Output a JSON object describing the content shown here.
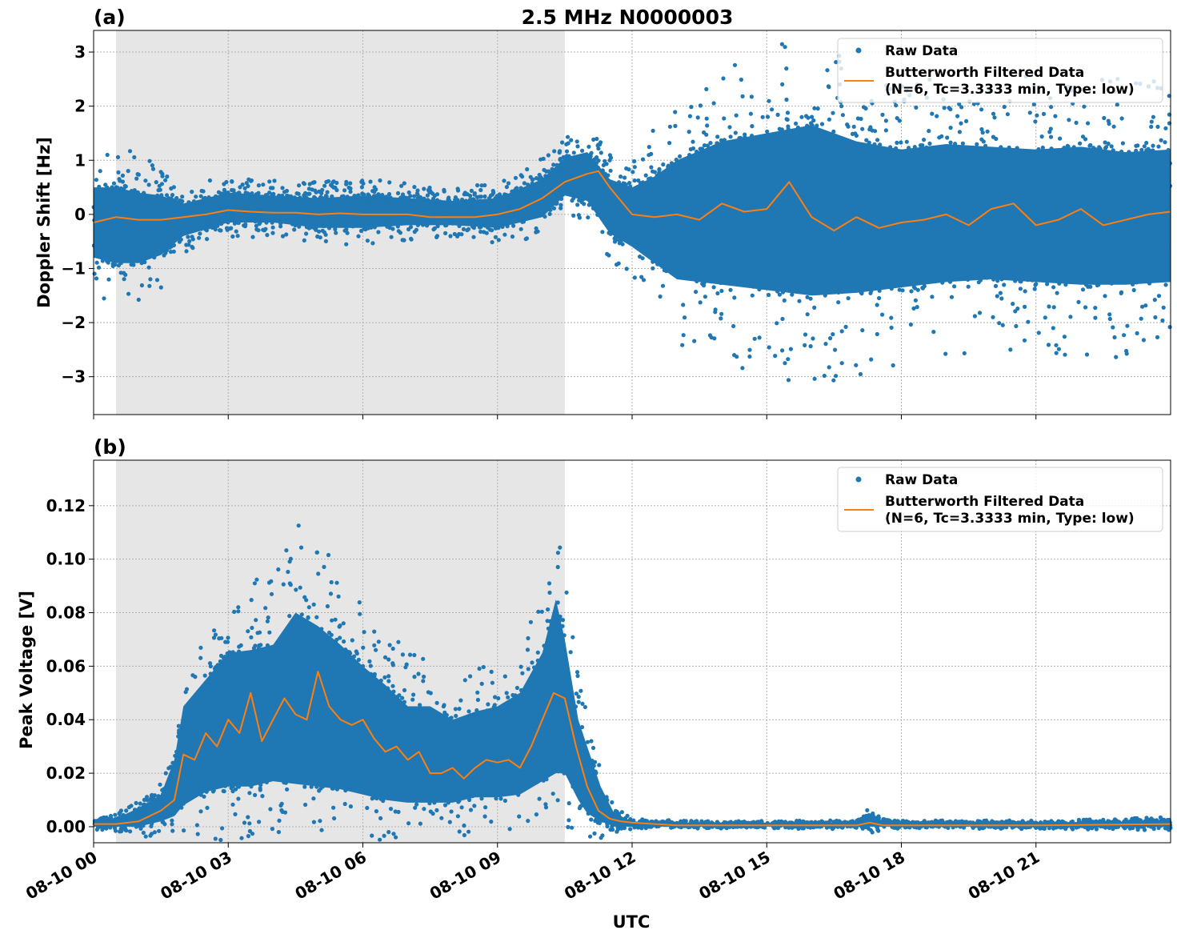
{
  "figure": {
    "title": "2.5 MHz N0000003",
    "xlabel": "UTC"
  },
  "chart_data": [
    {
      "type": "scatter",
      "panel_label": "(a)",
      "title": "2.5 MHz N0000003",
      "ylabel": "Doppler Shift [Hz]",
      "xlabel": "UTC",
      "x_unit": "hours since 08-10 00 UTC",
      "xlim": [
        0,
        24
      ],
      "ylim": [
        -3.7,
        3.4
      ],
      "x_ticks": [
        0,
        3,
        6,
        9,
        12,
        15,
        18,
        21
      ],
      "y_ticks": [
        -3,
        -2,
        -1,
        0,
        1,
        2,
        3
      ],
      "y_tick_labels": [
        "−3",
        "−2",
        "−1",
        "0",
        "1",
        "2",
        "3"
      ],
      "grid": true,
      "shaded_region": {
        "x": [
          0.5,
          10.5
        ],
        "color": "#e6e6e6"
      },
      "legend_position": "top-right",
      "legend": [
        {
          "label": "Raw Data",
          "marker": "dot",
          "color": "#1f77b4"
        },
        {
          "label": "Butterworth Filtered Data",
          "label2": "(N=6, Tc=3.3333 min, Type: low)",
          "marker": "line",
          "color": "#ff7f0e"
        }
      ],
      "raw_envelope": {
        "x": [
          0,
          0.5,
          1,
          1.5,
          2,
          3,
          4,
          5,
          6,
          7,
          8,
          9,
          10,
          10.5,
          11,
          11.5,
          12,
          12.5,
          13,
          14,
          15,
          16,
          17,
          18,
          19,
          20,
          21,
          22,
          23,
          24
        ],
        "upper": [
          0.5,
          0.5,
          0.4,
          0.35,
          0.2,
          0.4,
          0.35,
          0.3,
          0.35,
          0.3,
          0.25,
          0.3,
          0.65,
          1.05,
          1.15,
          0.65,
          0.5,
          0.7,
          1.0,
          1.35,
          1.5,
          1.65,
          1.35,
          1.2,
          1.3,
          1.25,
          1.2,
          1.25,
          1.15,
          1.2
        ],
        "lower": [
          -0.8,
          -0.9,
          -0.9,
          -0.75,
          -0.4,
          -0.15,
          -0.15,
          -0.25,
          -0.25,
          -0.2,
          -0.2,
          -0.25,
          -0.05,
          0.35,
          0.25,
          -0.35,
          -0.6,
          -0.9,
          -1.2,
          -1.3,
          -1.4,
          -1.5,
          -1.45,
          -1.35,
          -1.25,
          -1.2,
          -1.25,
          -1.3,
          -1.3,
          -1.25
        ]
      },
      "series": [
        {
          "name": "Butterworth Filtered Data",
          "x": [
            0,
            0.5,
            1,
            1.5,
            2,
            2.5,
            3,
            3.5,
            4,
            4.5,
            5,
            5.5,
            6,
            6.5,
            7,
            7.5,
            8,
            8.5,
            9,
            9.5,
            10,
            10.5,
            11,
            11.25,
            11.5,
            12,
            12.5,
            13,
            13.5,
            14,
            14.5,
            15,
            15.5,
            16,
            16.5,
            17,
            17.5,
            18,
            18.5,
            19,
            19.5,
            20,
            20.5,
            21,
            21.5,
            22,
            22.5,
            23,
            23.5,
            24
          ],
          "y": [
            -0.15,
            -0.05,
            -0.1,
            -0.1,
            -0.05,
            0.0,
            0.08,
            0.05,
            0.03,
            0.03,
            0.0,
            0.02,
            0.0,
            0.0,
            0.0,
            -0.05,
            -0.05,
            -0.05,
            0.0,
            0.1,
            0.3,
            0.6,
            0.75,
            0.8,
            0.5,
            0.0,
            -0.05,
            0.0,
            -0.1,
            0.2,
            0.05,
            0.1,
            0.6,
            -0.05,
            -0.3,
            -0.05,
            -0.25,
            -0.15,
            -0.1,
            0.0,
            -0.2,
            0.1,
            0.2,
            -0.2,
            -0.1,
            0.1,
            -0.2,
            -0.1,
            0.0,
            0.05
          ]
        }
      ]
    },
    {
      "type": "scatter",
      "panel_label": "(b)",
      "title": "",
      "ylabel": "Peak Voltage [V]",
      "xlabel": "UTC",
      "x_unit": "hours since 08-10 00 UTC",
      "xlim": [
        0,
        24
      ],
      "ylim": [
        -0.006,
        0.137
      ],
      "x_ticks": [
        0,
        3,
        6,
        9,
        12,
        15,
        18,
        21
      ],
      "x_tick_labels": [
        "08-10 00",
        "08-10 03",
        "08-10 06",
        "08-10 09",
        "08-10 12",
        "08-10 15",
        "08-10 18",
        "08-10 21"
      ],
      "y_ticks": [
        0.0,
        0.02,
        0.04,
        0.06,
        0.08,
        0.1,
        0.12
      ],
      "y_tick_labels": [
        "0.00",
        "0.02",
        "0.04",
        "0.06",
        "0.08",
        "0.10",
        "0.12"
      ],
      "grid": true,
      "shaded_region": {
        "x": [
          0.5,
          10.5
        ],
        "color": "#e6e6e6"
      },
      "legend_position": "top-right",
      "legend": [
        {
          "label": "Raw Data",
          "marker": "dot",
          "color": "#1f77b4"
        },
        {
          "label": "Butterworth Filtered Data",
          "label2": "(N=6, Tc=3.3333 min, Type: low)",
          "marker": "line",
          "color": "#ff7f0e"
        }
      ],
      "raw_envelope": {
        "x": [
          0,
          0.5,
          1,
          1.5,
          1.8,
          2,
          2.5,
          3,
          3.5,
          4,
          4.5,
          5,
          5.5,
          6,
          6.5,
          7,
          7.5,
          8,
          8.5,
          9,
          9.5,
          10,
          10.3,
          10.5,
          10.8,
          11,
          11.3,
          11.6,
          12,
          13,
          15,
          17,
          17.2,
          17.4,
          17.6,
          18,
          21,
          23,
          24
        ],
        "upper": [
          0.002,
          0.003,
          0.007,
          0.012,
          0.025,
          0.045,
          0.055,
          0.065,
          0.066,
          0.068,
          0.08,
          0.075,
          0.068,
          0.06,
          0.053,
          0.045,
          0.045,
          0.04,
          0.043,
          0.045,
          0.05,
          0.065,
          0.085,
          0.07,
          0.04,
          0.03,
          0.015,
          0.005,
          0.002,
          0.0015,
          0.0015,
          0.0015,
          0.004,
          0.004,
          0.002,
          0.0015,
          0.0015,
          0.002,
          0.0025
        ],
        "lower": [
          0.0,
          0.0,
          0.0,
          0.002,
          0.004,
          0.008,
          0.013,
          0.015,
          0.015,
          0.017,
          0.016,
          0.015,
          0.014,
          0.012,
          0.01,
          0.009,
          0.009,
          0.009,
          0.011,
          0.011,
          0.012,
          0.017,
          0.02,
          0.02,
          0.01,
          0.005,
          0.002,
          0.0,
          0.0,
          0.0,
          0.0,
          0.0,
          0.0,
          0.0,
          0.0,
          0.0,
          0.0,
          0.0,
          0.0
        ]
      },
      "series": [
        {
          "name": "Butterworth Filtered Data",
          "x": [
            0,
            0.5,
            1,
            1.5,
            1.8,
            2,
            2.25,
            2.5,
            2.75,
            3,
            3.25,
            3.5,
            3.75,
            4,
            4.25,
            4.5,
            4.75,
            5,
            5.25,
            5.5,
            5.75,
            6,
            6.25,
            6.5,
            6.75,
            7,
            7.25,
            7.5,
            7.75,
            8,
            8.25,
            8.5,
            8.75,
            9,
            9.25,
            9.5,
            9.75,
            10,
            10.25,
            10.5,
            10.75,
            11,
            11.25,
            11.5,
            11.75,
            12,
            13,
            15,
            17,
            17.3,
            17.6,
            18,
            21,
            24
          ],
          "y": [
            0.001,
            0.001,
            0.002,
            0.006,
            0.01,
            0.027,
            0.025,
            0.035,
            0.03,
            0.04,
            0.035,
            0.05,
            0.032,
            0.04,
            0.048,
            0.042,
            0.04,
            0.058,
            0.045,
            0.04,
            0.038,
            0.04,
            0.033,
            0.028,
            0.03,
            0.025,
            0.028,
            0.02,
            0.02,
            0.022,
            0.018,
            0.022,
            0.025,
            0.024,
            0.025,
            0.022,
            0.03,
            0.04,
            0.05,
            0.048,
            0.03,
            0.015,
            0.006,
            0.003,
            0.002,
            0.0015,
            0.0005,
            0.0005,
            0.0005,
            0.0015,
            0.0005,
            0.0005,
            0.0005,
            0.001
          ]
        }
      ]
    }
  ]
}
